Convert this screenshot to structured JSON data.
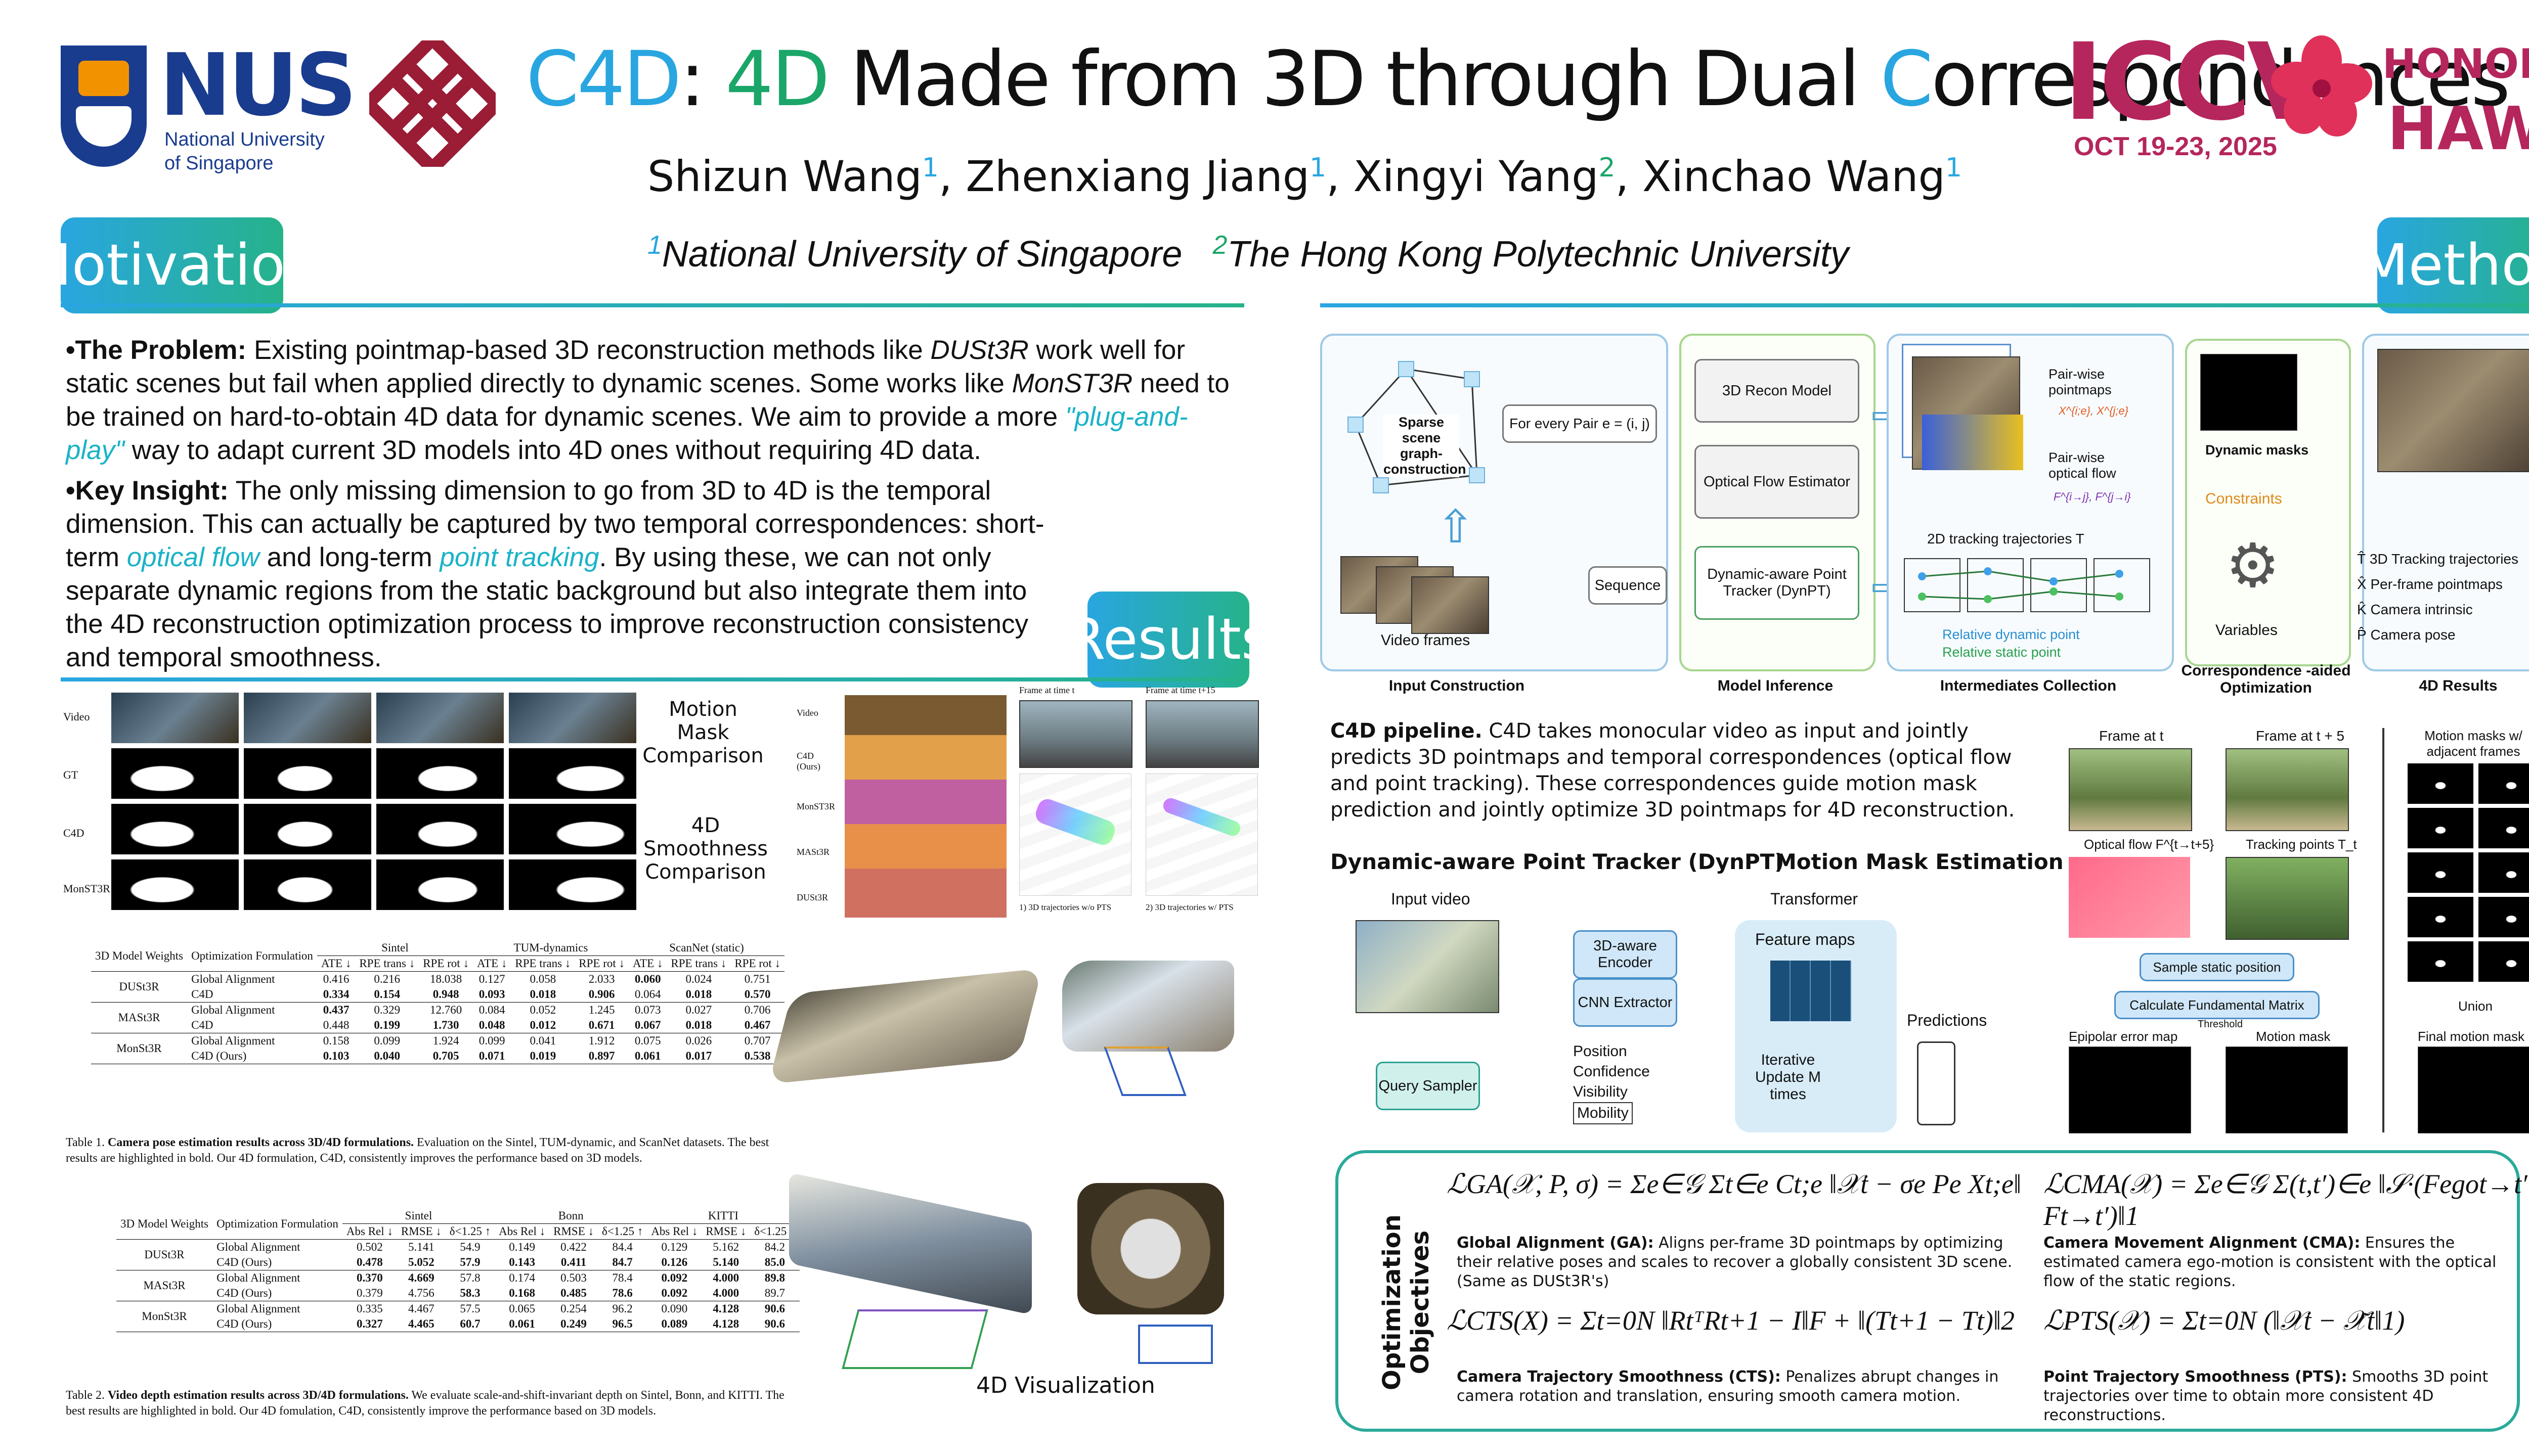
{
  "header": {
    "nus_logo_text": "NUS",
    "nus_subtitle_1": "National University",
    "nus_subtitle_2": "of Singapore",
    "title_c": "C",
    "title_4d": "4D",
    "title_colon": ": ",
    "title_4d2": "4D",
    "title_middle": " Made from 3D through Dual ",
    "title_c2": "C",
    "title_end": "orrespondences",
    "authors": [
      {
        "name": "Shizun Wang",
        "aff": "1"
      },
      {
        "name": "Zhenxiang Jiang",
        "aff": "1"
      },
      {
        "name": "Xingyi Yang",
        "aff": "2"
      },
      {
        "name": "Xinchao Wang",
        "aff": "1"
      }
    ],
    "affil_1_num": "1",
    "affil_1": "National University of Singapore",
    "affil_2_num": "2",
    "affil_2": "The Hong Kong Polytechnic University",
    "iccv": "ICCV",
    "iccv_dates": "OCT 19-23, 2025",
    "honolulu": "HONOLULU",
    "hawaii": "HAWAII"
  },
  "sections": {
    "motivation": "Motivation",
    "method": "Method",
    "results": "Results"
  },
  "motivation": {
    "p1_head": "•The Problem:",
    "p1_a": " Existing pointmap-based 3D reconstruction methods like ",
    "p1_b": "DUSt3R",
    "p1_c": " work well for static scenes but fail when applied directly to dynamic scenes. Some works like ",
    "p1_d": "MonST3R",
    "p1_e": " need to be trained on hard-to-obtain 4D data for dynamic scenes. We aim to provide a more ",
    "p1_f": "\"plug-and-play\"",
    "p1_g": " way to adapt current 3D models into 4D ones without requiring 4D data.",
    "p2_head": "•Key Insight:",
    "p2_a": " The only missing dimension to go from 3D to 4D is the temporal dimension. This can actually be captured by two temporal correspondences: short-term ",
    "p2_b": "optical flow",
    "p2_c": " and long-term ",
    "p2_d": "point tracking",
    "p2_e": ". By using these, we can not only separate dynamic regions from the static background but also integrate them into the 4D reconstruction optimization process to improve reconstruction consistency and temporal smoothness."
  },
  "results": {
    "mask_rows": [
      "Video",
      "GT",
      "C4D",
      "MonST3R"
    ],
    "motion_mask_label": "Motion Mask Comparison",
    "smooth_label": "4D Smoothness Comparison",
    "smooth_rows": [
      "Video",
      "C4D (Ours)",
      "MonST3R",
      "MASt3R",
      "DUSt3R"
    ],
    "smooth_header_1": "Frame at time t",
    "smooth_header_2": "Frame at time t+15",
    "traj_cap_1": "1) 3D trajectories w/o PTS",
    "traj_cap_2": "2) 3D trajectories w/ PTS",
    "vis_label": "4D Visualization"
  },
  "table1": {
    "col_model": "3D Model Weights",
    "col_opt": "Optimization Formulation",
    "groups": [
      "Sintel",
      "TUM-dynamics",
      "ScanNet (static)"
    ],
    "metrics": [
      "ATE ↓",
      "RPE trans ↓",
      "RPE rot ↓",
      "ATE ↓",
      "RPE trans ↓",
      "RPE rot ↓",
      "ATE ↓",
      "RPE trans ↓",
      "RPE rot ↓"
    ],
    "rows": [
      {
        "model": "DUSt3R",
        "opt": "Global Alignment",
        "vals": [
          "0.416",
          "0.216",
          "18.038",
          "0.127",
          "0.058",
          "2.033",
          "0.060",
          "0.024",
          "0.751"
        ]
      },
      {
        "model": "",
        "opt": "C4D",
        "vals": [
          "0.334",
          "0.154",
          "0.948",
          "0.093",
          "0.018",
          "0.906",
          "0.064",
          "0.018",
          "0.570"
        ]
      },
      {
        "model": "MASt3R",
        "opt": "Global Alignment",
        "vals": [
          "0.437",
          "0.329",
          "12.760",
          "0.084",
          "0.052",
          "1.245",
          "0.073",
          "0.027",
          "0.706"
        ]
      },
      {
        "model": "",
        "opt": "C4D",
        "vals": [
          "0.448",
          "0.199",
          "1.730",
          "0.048",
          "0.012",
          "0.671",
          "0.067",
          "0.018",
          "0.467"
        ]
      },
      {
        "model": "MonSt3R",
        "opt": "Global Alignment",
        "vals": [
          "0.158",
          "0.099",
          "1.924",
          "0.099",
          "0.041",
          "1.912",
          "0.075",
          "0.026",
          "0.707"
        ]
      },
      {
        "model": "",
        "opt": "C4D (Ours)",
        "vals": [
          "0.103",
          "0.040",
          "0.705",
          "0.071",
          "0.019",
          "0.897",
          "0.061",
          "0.017",
          "0.538"
        ]
      }
    ],
    "caption_bold": "Camera pose estimation results across 3D/4D formulations.",
    "caption_prefix": "Table 1.",
    "caption_rest": " Evaluation on the Sintel, TUM-dynamic, and ScanNet datasets. The best results are highlighted in bold. Our 4D formulation, C4D, consistently improves the performance based on 3D models."
  },
  "table2": {
    "col_model": "3D Model Weights",
    "col_opt": "Optimization Formulation",
    "groups": [
      "Sintel",
      "Bonn",
      "KITTI"
    ],
    "metrics": [
      "Abs Rel ↓",
      "RMSE ↓",
      "δ<1.25 ↑",
      "Abs Rel ↓",
      "RMSE ↓",
      "δ<1.25 ↑",
      "Abs Rel ↓",
      "RMSE ↓",
      "δ<1.25 ↑"
    ],
    "rows": [
      {
        "model": "DUSt3R",
        "opt": "Global Alignment",
        "vals": [
          "0.502",
          "5.141",
          "54.9",
          "0.149",
          "0.422",
          "84.4",
          "0.129",
          "5.162",
          "84.2"
        ]
      },
      {
        "model": "",
        "opt": "C4D (Ours)",
        "vals": [
          "0.478",
          "5.052",
          "57.9",
          "0.143",
          "0.411",
          "84.7",
          "0.126",
          "5.140",
          "85.0"
        ]
      },
      {
        "model": "MASt3R",
        "opt": "Global Alignment",
        "vals": [
          "0.370",
          "4.669",
          "57.8",
          "0.174",
          "0.503",
          "78.4",
          "0.092",
          "4.000",
          "89.8"
        ]
      },
      {
        "model": "",
        "opt": "C4D (Ours)",
        "vals": [
          "0.379",
          "4.756",
          "58.3",
          "0.168",
          "0.485",
          "78.6",
          "0.092",
          "4.000",
          "89.7"
        ]
      },
      {
        "model": "MonSt3R",
        "opt": "Global Alignment",
        "vals": [
          "0.335",
          "4.467",
          "57.5",
          "0.065",
          "0.254",
          "96.2",
          "0.090",
          "4.128",
          "90.6"
        ]
      },
      {
        "model": "",
        "opt": "C4D (Ours)",
        "vals": [
          "0.327",
          "4.465",
          "60.7",
          "0.061",
          "0.249",
          "96.5",
          "0.089",
          "4.128",
          "90.6"
        ]
      }
    ],
    "caption_prefix": "Table 2.",
    "caption_bold": "Video depth estimation results across 3D/4D formulations.",
    "caption_rest": " We evaluate scale-and-shift-invariant depth on Sintel, Bonn, and KITTI. The best results are highlighted in bold. Our 4D fomulation, C4D, consistently improve the performance based on 3D models."
  },
  "method": {
    "sparse_graph": "Sparse scene graph-construction",
    "for_every_pair": "For every Pair e = (i, j)",
    "recon_model": "3D Recon Model",
    "flow_estimator": "Optical Flow Estimator",
    "dynpt": "Dynamic-aware Point Tracker (DynPT)",
    "sequence": "Sequence",
    "video_frames": "Video frames",
    "pairwise_pointmaps": "Pair-wise pointmaps",
    "pointmaps_sym": "X^{i;e}, X^{j;e}",
    "pairwise_flow": "Pair-wise optical flow",
    "flow_sym": "F^{i→j}, F^{j→i}",
    "tracking_traj": "2D tracking trajectories T",
    "rel_dynamic": "Relative dynamic point",
    "rel_static": "Relative static point",
    "dynamic_masks": "Dynamic masks",
    "constraints": "Constraints",
    "variables": "Variables",
    "out_1": "T̂ 3D Tracking trajectories",
    "out_2": "X̂ Per-frame pointmaps",
    "out_3": "K̂ Camera intrinsic",
    "out_4": "P̂ Camera pose",
    "stage_1": "Input Construction",
    "stage_2": "Model Inference",
    "stage_3": "Intermediates Collection",
    "stage_4": "Correspondence -aided Optimization",
    "stage_5": "4D Results",
    "pipeline_head": "C4D pipeline.",
    "pipeline_text": " C4D takes monocular video as input and jointly predicts 3D pointmaps and temporal correspondences (optical flow and point tracking). These correspondences guide motion mask prediction and jointly optimize 3D pointmaps for 4D reconstruction.",
    "dynpt_title": "Dynamic-aware Point Tracker (DynPT)",
    "mme_title": "Motion Mask Estimation",
    "input_video": "Input video",
    "encoder_3d": "3D-aware Encoder",
    "cnn": "CNN Extractor",
    "transformer": "Transformer",
    "feature_maps": "Feature maps",
    "query_sampler": "Query Sampler",
    "pcvm": [
      "Position",
      "Confidence",
      "Visibility",
      "Mobility"
    ],
    "iter_update": "Iterative Update M times",
    "predictions": "Predictions",
    "frame_t": "Frame at t",
    "frame_t5": "Frame at t + 5",
    "optical_flow_label": "Optical flow F^{t→t+5}",
    "tracking_points": "Tracking points T_t",
    "sample_static": "Sample static position",
    "calc_fund": "Calculate Fundamental Matrix",
    "threshold": "Threshold",
    "epipolar": "Epipolar error map",
    "motion_mask": "Motion mask",
    "masks_adjacent": "Motion masks w/ adjacent frames",
    "union": "Union",
    "final_mask": "Final motion mask M_t"
  },
  "objectives": {
    "title": "Optimization Objectives",
    "ga_formula": "ℒGA(𝒳, P, σ) = Σe∈𝒢 Σt∈e Ct;e ‖𝒳t − σe Pe Xt;e‖",
    "ga_desc_bold": "Global Alignment (GA):",
    "ga_desc": " Aligns per-frame 3D pointmaps by optimizing their relative poses and scales to recover a globally consistent 3D scene. (Same as DUSt3R's)",
    "cma_formula": "ℒCMA(𝒳) = Σe∈𝒢 Σ(t,t′)∈e ‖𝒮·(Fegot→t′ − Ft→t′)‖1",
    "cma_desc_bold": "Camera Movement Alignment (CMA):",
    "cma_desc": " Ensures the estimated camera ego-motion is consistent with the optical flow of the static regions.",
    "cts_formula": "ℒCTS(X) = Σt=0N ‖RtᵀRt+1 − I‖F + ‖(Tt+1 − Tt)‖2",
    "cts_desc_bold": "Camera Trajectory Smoothness (CTS):",
    "cts_desc": " Penalizes abrupt changes in camera rotation and translation, ensuring smooth camera motion.",
    "pts_formula": "ℒPTS(𝒳) = Σt=0N (‖𝒳t − 𝒳̃t‖1)",
    "pts_desc_bold": "Point Trajectory Smoothness (PTS):",
    "pts_desc": " Smooths 3D point trajectories over time to obtain more consistent 4D reconstructions."
  }
}
